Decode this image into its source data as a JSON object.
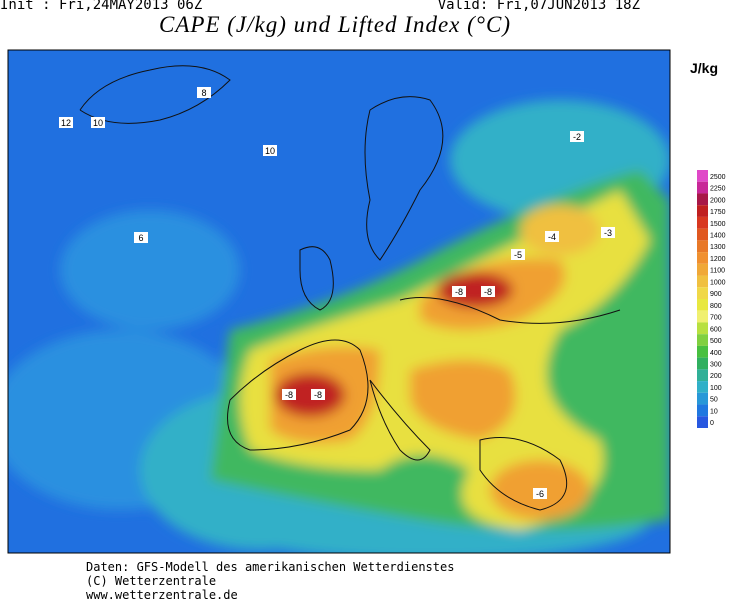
{
  "header": {
    "init": "Init : Fri,24MAY2013 06Z",
    "valid": "Valid: Fri,07JUN2013 18Z",
    "title": "CAPE (J/kg) und Lifted Index (°C)"
  },
  "legend": {
    "unit": "J/kg",
    "levels": [
      {
        "value": 2500,
        "color": "#e048c8"
      },
      {
        "value": 2250,
        "color": "#c82898"
      },
      {
        "value": 2000,
        "color": "#a81848"
      },
      {
        "value": 1750,
        "color": "#c02020"
      },
      {
        "value": 1500,
        "color": "#d83820"
      },
      {
        "value": 1400,
        "color": "#e05820"
      },
      {
        "value": 1300,
        "color": "#e87828"
      },
      {
        "value": 1200,
        "color": "#f09030"
      },
      {
        "value": 1100,
        "color": "#f0a838"
      },
      {
        "value": 1000,
        "color": "#f0c040"
      },
      {
        "value": 900,
        "color": "#f0d848"
      },
      {
        "value": 800,
        "color": "#e8e840"
      },
      {
        "value": 700,
        "color": "#f0f070"
      },
      {
        "value": 600,
        "color": "#b8e040"
      },
      {
        "value": 500,
        "color": "#80d040"
      },
      {
        "value": 400,
        "color": "#48c040"
      },
      {
        "value": 300,
        "color": "#30b060"
      },
      {
        "value": 200,
        "color": "#30b098"
      },
      {
        "value": 100,
        "color": "#30b0c8"
      },
      {
        "value": 50,
        "color": "#2898d8"
      },
      {
        "value": 10,
        "color": "#2078e0"
      },
      {
        "value": 0,
        "color": "#2858e0"
      }
    ]
  },
  "map_labels": [
    "-8",
    "-8",
    "-8",
    "-8",
    "-6",
    "-5",
    "-4",
    "-3",
    "-2",
    "12",
    "10",
    "10",
    "8",
    "6"
  ],
  "footer": [
    "Daten: GFS-Modell des amerikanischen Wetterdienstes",
    "(C) Wetterzentrale",
    "www.wetterzentrale.de"
  ]
}
